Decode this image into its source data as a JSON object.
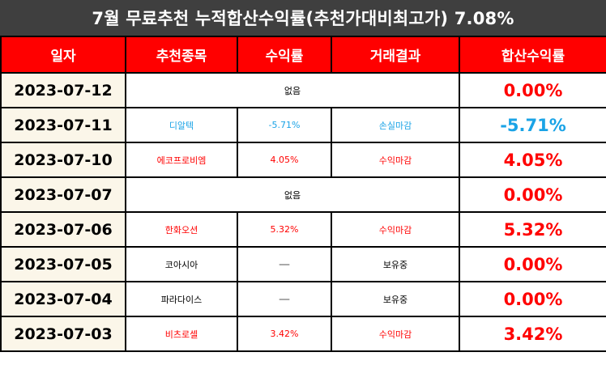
{
  "title": "7월 무료추천 누적합산수익률(추천가대비최고가) 7.08%",
  "colors": {
    "header_bg": "#ff0000",
    "title_bg": "#3f3f3f",
    "positive": "#ff0000",
    "negative": "#1aa3e6",
    "date_bg": "#fbf6e9"
  },
  "columns": [
    "일자",
    "추천종목",
    "수익률",
    "거래결과",
    "합산수익률"
  ],
  "rows": [
    {
      "date": "2023-07-12",
      "none": "없음",
      "total": "0.00%",
      "tone": "red"
    },
    {
      "date": "2023-07-11",
      "stock": "디알텍",
      "rate": "-5.71%",
      "result": "손실마감",
      "total": "-5.71%",
      "tone": "blue"
    },
    {
      "date": "2023-07-10",
      "stock": "에코프로비엠",
      "rate": "4.05%",
      "result": "수익마감",
      "total": "4.05%",
      "tone": "red"
    },
    {
      "date": "2023-07-07",
      "none": "없음",
      "total": "0.00%",
      "tone": "red"
    },
    {
      "date": "2023-07-06",
      "stock": "한화오션",
      "rate": "5.32%",
      "result": "수익마감",
      "total": "5.32%",
      "tone": "red"
    },
    {
      "date": "2023-07-05",
      "stock": "코아시아",
      "rate": "—",
      "result": "보유중",
      "total": "0.00%",
      "tone": "black"
    },
    {
      "date": "2023-07-04",
      "stock": "파라다이스",
      "rate": "—",
      "result": "보유중",
      "total": "0.00%",
      "tone": "black"
    },
    {
      "date": "2023-07-03",
      "stock": "비츠로셀",
      "rate": "3.42%",
      "result": "수익마감",
      "total": "3.42%",
      "tone": "red"
    }
  ]
}
